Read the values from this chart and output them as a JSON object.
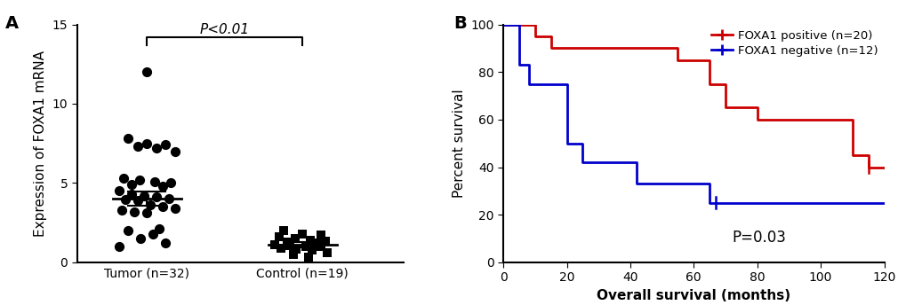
{
  "panel_a": {
    "tumor_dots": [
      12.0,
      7.8,
      7.5,
      7.4,
      7.3,
      7.2,
      7.0,
      5.3,
      5.2,
      5.1,
      5.0,
      4.9,
      4.8,
      4.5,
      4.3,
      4.2,
      4.1,
      4.0,
      3.95,
      3.9,
      3.6,
      3.5,
      3.4,
      3.3,
      3.2,
      3.1,
      2.1,
      2.0,
      1.8,
      1.5,
      1.2,
      1.0
    ],
    "tumor_x": [
      0.0,
      -0.12,
      0.0,
      0.12,
      -0.06,
      0.06,
      0.18,
      -0.15,
      -0.05,
      0.05,
      0.15,
      -0.1,
      0.1,
      -0.18,
      -0.1,
      -0.02,
      0.06,
      0.14,
      -0.14,
      -0.06,
      0.02,
      0.1,
      0.18,
      -0.16,
      -0.08,
      0.0,
      0.08,
      -0.12,
      0.04,
      -0.04,
      0.12,
      -0.18
    ],
    "tumor_mean": 4.0,
    "tumor_sem": 0.45,
    "control_dots": [
      2.0,
      1.8,
      1.7,
      1.6,
      1.5,
      1.4,
      1.35,
      1.3,
      1.2,
      1.1,
      1.05,
      1.0,
      1.0,
      0.9,
      0.85,
      0.8,
      0.6,
      0.5,
      0.3
    ],
    "control_x": [
      -0.12,
      0.0,
      0.12,
      -0.15,
      -0.05,
      0.05,
      0.15,
      -0.1,
      0.1,
      -0.18,
      -0.08,
      0.02,
      0.12,
      -0.14,
      -0.04,
      0.06,
      0.16,
      -0.06,
      0.04
    ],
    "control_mean": 1.1,
    "control_sem": 0.15,
    "ylabel": "Expression of FOXA1 mRNA",
    "xtick_labels": [
      "Tumor (n=32)",
      "Control (n=19)"
    ],
    "ylim": [
      0,
      15
    ],
    "yticks": [
      0,
      5,
      10,
      15
    ],
    "sig_text": "P<0.01",
    "dot_color": "#000000",
    "mean_line_color": "#000000"
  },
  "panel_b": {
    "pos_times": [
      0,
      5,
      10,
      15,
      50,
      55,
      60,
      65,
      70,
      80,
      100,
      110,
      115,
      120
    ],
    "pos_surv": [
      100,
      100,
      95,
      90,
      90,
      85,
      85,
      75,
      65,
      60,
      60,
      45,
      40,
      40
    ],
    "neg_times": [
      0,
      5,
      8,
      10,
      20,
      25,
      40,
      42,
      50,
      65,
      67,
      120
    ],
    "neg_surv": [
      100,
      83,
      75,
      75,
      50,
      42,
      42,
      33,
      33,
      25,
      25,
      25
    ],
    "pos_censor_x": [
      115
    ],
    "pos_censor_y": [
      40
    ],
    "neg_censor_x": [
      67
    ],
    "neg_censor_y": [
      25
    ],
    "pos_color": "#cc0000",
    "neg_color": "#0000cc",
    "xlabel": "Overall survival (months)",
    "ylabel": "Percent survival",
    "xlim": [
      0,
      120
    ],
    "ylim": [
      0,
      100
    ],
    "xticks": [
      0,
      20,
      40,
      60,
      80,
      100,
      120
    ],
    "yticks": [
      0,
      20,
      40,
      60,
      80,
      100
    ],
    "legend_pos_label": "FOXA1 positive (n=20)",
    "legend_neg_label": "FOXA1 negative (n=12)",
    "pvalue_text": "P=0.03"
  },
  "background_color": "#ffffff",
  "font_color": "#000000",
  "label_fontsize": 11,
  "tick_fontsize": 10,
  "panel_label_fontsize": 14
}
